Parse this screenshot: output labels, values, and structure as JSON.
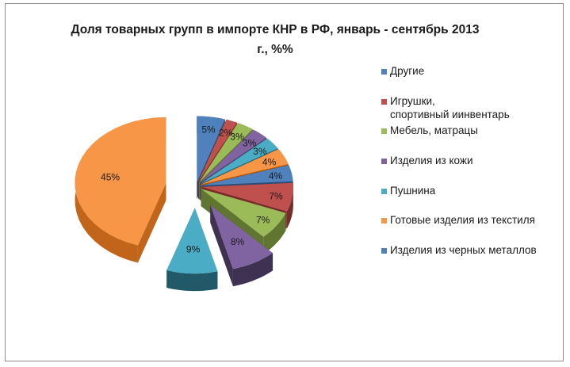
{
  "chart_data": {
    "type": "pie",
    "style": "3d-exploded",
    "title": "Доля товарных  групп в импорте КНР в РФ, январь - сентябрь 2013 г., %%",
    "title_lines": [
      "Доля товарных  групп в импорте КНР в РФ, январь - сентябрь 2013",
      "г., %%"
    ],
    "legend_position": "right",
    "slices": [
      {
        "label": "Другие",
        "value": 5,
        "data_label": "5%",
        "color": "#4f81bd",
        "dark": "#2c4d75"
      },
      {
        "label": "Игрушки,\nспортивный  иинвентарь",
        "value": 2,
        "data_label": "2%",
        "color": "#c0504d",
        "dark": "#772c2a"
      },
      {
        "label": "Мебель, матрацы",
        "value": 3,
        "data_label": "3%",
        "color": "#9bbb59",
        "dark": "#5f7530"
      },
      {
        "label": "Изделия из кожи",
        "value": 3,
        "data_label": "3%",
        "color": "#8064a2",
        "dark": "#4d3b62"
      },
      {
        "label": "Пушнина",
        "value": 3,
        "data_label": "3%",
        "color": "#4bacc6",
        "dark": "#276a7c"
      },
      {
        "label": "Готовые изделия из текстиля",
        "value": 4,
        "data_label": "4%",
        "color": "#f79646",
        "dark": "#b65708"
      },
      {
        "label": "Изделия из черных  металлов",
        "value": 4,
        "data_label": "4%",
        "color": "#4f81bd",
        "dark": "#2c4d75"
      },
      {
        "label": "",
        "value": 7,
        "data_label": "7%",
        "color": "#c0504d",
        "dark": "#772c2a"
      },
      {
        "label": "",
        "value": 7,
        "data_label": "7%",
        "color": "#9bbb59",
        "dark": "#5f7530"
      },
      {
        "label": "",
        "value": 8,
        "data_label": "8%",
        "color": "#8064a2",
        "dark": "#3f3151"
      },
      {
        "label": "",
        "value": 9,
        "data_label": "9%",
        "color": "#4bacc6",
        "dark": "#215968"
      },
      {
        "label": "",
        "value": 45,
        "data_label": "45%",
        "color": "#f79646",
        "dark": "#c0651a"
      }
    ]
  }
}
